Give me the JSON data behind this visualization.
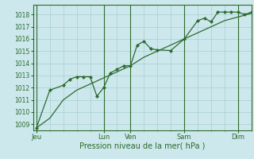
{
  "title": "",
  "xlabel": "Pression niveau de la mer( hPa )",
  "ylabel": "",
  "bg_color": "#cce8ec",
  "grid_color": "#a8cdd4",
  "line_color": "#2d6a2d",
  "marker_color": "#2d6a2d",
  "ylim": [
    1008.5,
    1018.8
  ],
  "yticks": [
    1009,
    1010,
    1011,
    1012,
    1013,
    1014,
    1015,
    1016,
    1017,
    1018
  ],
  "day_labels": [
    "Jeu",
    "Lun",
    "Ven",
    "Sam",
    "Dim"
  ],
  "day_positions": [
    0,
    40,
    56,
    88,
    120
  ],
  "xlim": [
    -2,
    128
  ],
  "series1_x": [
    0,
    8,
    16,
    24,
    32,
    40,
    48,
    56,
    64,
    72,
    80,
    88,
    96,
    104,
    112,
    120,
    128
  ],
  "series1_y": [
    1008.7,
    1009.5,
    1011.0,
    1011.8,
    1012.3,
    1012.8,
    1013.3,
    1013.8,
    1014.5,
    1015.0,
    1015.5,
    1016.0,
    1016.5,
    1017.0,
    1017.5,
    1017.8,
    1018.1
  ],
  "series2_x": [
    0,
    8,
    16,
    20,
    24,
    28,
    32,
    36,
    40,
    44,
    48,
    52,
    56,
    60,
    64,
    68,
    72,
    80,
    88,
    96,
    100,
    104,
    108,
    112,
    116,
    120,
    124,
    128
  ],
  "series2_y": [
    1008.7,
    1011.8,
    1012.2,
    1012.7,
    1012.9,
    1012.9,
    1012.9,
    1011.3,
    1012.0,
    1013.2,
    1013.5,
    1013.8,
    1013.8,
    1015.5,
    1015.8,
    1015.2,
    1015.1,
    1015.05,
    1016.0,
    1017.5,
    1017.7,
    1017.4,
    1018.2,
    1018.2,
    1018.2,
    1018.2,
    1018.0,
    1018.2
  ]
}
